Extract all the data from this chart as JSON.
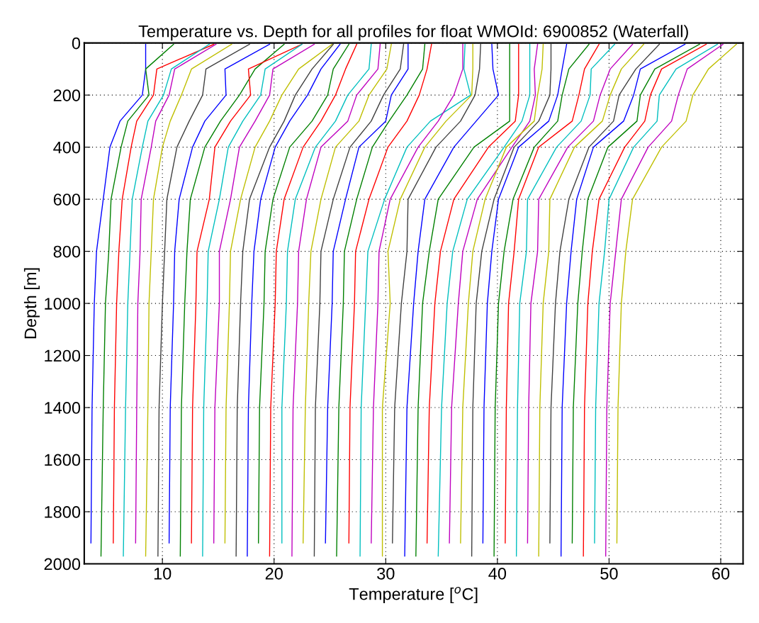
{
  "chart_data": {
    "type": "line",
    "title": "Temperature vs. Depth for all profiles for float WMOId: 6900852 (Waterfall)",
    "xlabel": "Temperature [$^{o}$C]",
    "ylabel": "Depth [m]",
    "xlim": [
      3,
      62
    ],
    "xticks": [
      10,
      20,
      30,
      40,
      50,
      60
    ],
    "ylim": [
      2000,
      0
    ],
    "yticks": [
      0,
      200,
      400,
      600,
      800,
      1000,
      1200,
      1400,
      1600,
      1800,
      2000
    ],
    "grid": true,
    "line_style": "solid",
    "marker": "none",
    "series": [
      {
        "color": "#0000ff",
        "x": [
          8.5,
          8.5,
          8.2,
          6.2,
          5.3,
          4.7,
          4.1,
          3.9,
          3.7,
          3.6
        ],
        "values": [
          5,
          100,
          200,
          300,
          400,
          600,
          800,
          1000,
          1400,
          1920
        ]
      },
      {
        "color": "#008000",
        "x": [
          11.0,
          8.5,
          8.8,
          6.9,
          6.3,
          5.4,
          5.2,
          4.9,
          4.7,
          4.5
        ],
        "values": [
          5,
          100,
          200,
          300,
          400,
          600,
          800,
          1000,
          1400,
          1970
        ]
      },
      {
        "color": "#ff0000",
        "x": [
          14.6,
          9.5,
          9.2,
          7.7,
          7.2,
          6.4,
          6.1,
          5.9,
          5.7,
          5.6
        ],
        "values": [
          5,
          100,
          200,
          300,
          400,
          600,
          800,
          1000,
          1400,
          1920
        ]
      },
      {
        "color": "#00bfbf",
        "x": [
          14.2,
          10.8,
          10.1,
          8.7,
          8.2,
          7.3,
          7.1,
          6.9,
          6.7,
          6.5
        ],
        "values": [
          5,
          100,
          200,
          300,
          400,
          600,
          800,
          1000,
          1400,
          1970
        ]
      },
      {
        "color": "#bf00bf",
        "x": [
          14.8,
          11.1,
          10.6,
          9.4,
          9.0,
          8.1,
          8.0,
          7.8,
          7.7,
          7.6
        ],
        "values": [
          5,
          100,
          200,
          300,
          400,
          600,
          800,
          1000,
          1400,
          1920
        ]
      },
      {
        "color": "#bfbf00",
        "x": [
          16.2,
          12.6,
          11.7,
          10.7,
          10.0,
          9.2,
          9.0,
          8.8,
          8.7,
          8.5
        ],
        "values": [
          5,
          100,
          200,
          300,
          400,
          600,
          800,
          1000,
          1400,
          1970
        ]
      },
      {
        "color": "#404040",
        "x": [
          17.8,
          13.9,
          13.6,
          12.4,
          11.3,
          10.4,
          10.2,
          10.0,
          9.7,
          9.6
        ],
        "values": [
          5,
          100,
          200,
          300,
          400,
          600,
          800,
          1000,
          1400,
          1970
        ]
      },
      {
        "color": "#0000ff",
        "x": [
          19.6,
          15.6,
          15.7,
          13.8,
          12.7,
          11.5,
          11.1,
          11.0,
          10.7,
          10.6
        ],
        "values": [
          5,
          100,
          200,
          300,
          400,
          600,
          800,
          1000,
          1400,
          1920
        ]
      },
      {
        "color": "#008000",
        "x": [
          20.9,
          18.3,
          16.9,
          15.2,
          13.8,
          12.5,
          12.2,
          12.0,
          11.7,
          11.6
        ],
        "values": [
          5,
          100,
          200,
          300,
          400,
          600,
          800,
          1000,
          1400,
          1970
        ]
      },
      {
        "color": "#ff0000",
        "x": [
          22.5,
          17.7,
          17.9,
          16.1,
          14.7,
          14.2,
          13.1,
          13.0,
          12.7,
          12.6
        ],
        "values": [
          5,
          100,
          200,
          300,
          400,
          600,
          800,
          1000,
          1400,
          1920
        ]
      },
      {
        "color": "#00bfbf",
        "x": [
          22.5,
          19.2,
          18.8,
          17.2,
          15.9,
          15.1,
          14.1,
          14.0,
          13.7,
          13.6
        ],
        "values": [
          5,
          100,
          200,
          300,
          400,
          600,
          800,
          1000,
          1400,
          1970
        ]
      },
      {
        "color": "#bf00bf",
        "x": [
          23.6,
          19.9,
          19.6,
          18.3,
          16.9,
          16.1,
          15.1,
          15.1,
          14.7,
          14.6
        ],
        "values": [
          5,
          100,
          200,
          300,
          400,
          600,
          800,
          1000,
          1400,
          1920
        ]
      },
      {
        "color": "#bfbf00",
        "x": [
          25.2,
          22.2,
          20.7,
          19.6,
          18.3,
          17.0,
          16.1,
          16.0,
          15.7,
          15.6
        ],
        "values": [
          5,
          100,
          200,
          300,
          400,
          600,
          800,
          1000,
          1400,
          1920
        ]
      },
      {
        "color": "#404040",
        "x": [
          25.3,
          23.4,
          21.9,
          20.9,
          19.6,
          17.8,
          17.2,
          17.0,
          16.7,
          16.6
        ],
        "values": [
          5,
          100,
          200,
          300,
          400,
          600,
          800,
          1000,
          1400,
          1970
        ]
      },
      {
        "color": "#0000ff",
        "x": [
          25.9,
          24.2,
          23.0,
          21.4,
          20.1,
          18.8,
          18.2,
          18.0,
          17.7,
          17.6
        ],
        "values": [
          5,
          100,
          200,
          300,
          400,
          600,
          800,
          1000,
          1400,
          1970
        ]
      },
      {
        "color": "#008000",
        "x": [
          26.7,
          25.3,
          24.8,
          23.4,
          21.4,
          19.9,
          19.2,
          19.1,
          18.7,
          18.6
        ],
        "values": [
          5,
          100,
          200,
          300,
          400,
          600,
          800,
          1000,
          1400,
          1920
        ]
      },
      {
        "color": "#ff0000",
        "x": [
          27.4,
          26.4,
          25.5,
          24.2,
          22.6,
          20.9,
          20.2,
          20.1,
          19.7,
          19.6
        ],
        "values": [
          5,
          100,
          200,
          300,
          400,
          600,
          800,
          1000,
          1400,
          1970
        ]
      },
      {
        "color": "#00bfbf",
        "x": [
          28.7,
          28.5,
          26.6,
          25.5,
          23.7,
          21.9,
          21.2,
          21.1,
          20.7,
          20.7
        ],
        "values": [
          5,
          100,
          200,
          300,
          400,
          600,
          800,
          1000,
          1400,
          1920
        ]
      },
      {
        "color": "#bf00bf",
        "x": [
          29.5,
          29.3,
          27.4,
          26.6,
          24.2,
          22.9,
          22.2,
          22.1,
          21.7,
          21.6
        ],
        "values": [
          5,
          100,
          200,
          300,
          400,
          600,
          800,
          1000,
          1400,
          1970
        ]
      },
      {
        "color": "#bfbf00",
        "x": [
          30.5,
          30.1,
          28.5,
          27.6,
          25.5,
          24.2,
          23.3,
          23.1,
          22.8,
          22.6
        ],
        "values": [
          5,
          100,
          200,
          300,
          400,
          600,
          800,
          1000,
          1400,
          1920
        ]
      },
      {
        "color": "#404040",
        "x": [
          31.6,
          31.3,
          29.8,
          28.7,
          26.8,
          25.3,
          24.2,
          24.1,
          23.7,
          23.6
        ],
        "values": [
          5,
          100,
          200,
          300,
          400,
          600,
          800,
          1000,
          1400,
          1970
        ]
      },
      {
        "color": "#0000ff",
        "x": [
          32.0,
          32.0,
          30.5,
          30.0,
          27.6,
          26.4,
          25.3,
          25.2,
          24.8,
          24.6
        ],
        "values": [
          5,
          100,
          200,
          300,
          400,
          600,
          800,
          1000,
          1400,
          1920
        ]
      },
      {
        "color": "#008000",
        "x": [
          33.5,
          33.3,
          31.9,
          30.3,
          28.8,
          27.4,
          26.3,
          26.2,
          25.8,
          25.6
        ],
        "values": [
          5,
          100,
          200,
          300,
          400,
          600,
          800,
          1000,
          1400,
          1970
        ]
      },
      {
        "color": "#ff0000",
        "x": [
          34.1,
          33.7,
          33.0,
          31.9,
          30.2,
          28.5,
          27.3,
          27.2,
          26.8,
          26.7
        ],
        "values": [
          5,
          100,
          200,
          300,
          400,
          600,
          800,
          1000,
          1400,
          1920
        ]
      },
      {
        "color": "#00bfbf",
        "x": [
          37.1,
          37.0,
          37.6,
          34.0,
          31.9,
          29.9,
          28.4,
          28.2,
          27.8,
          27.7
        ],
        "values": [
          5,
          100,
          200,
          300,
          400,
          600,
          800,
          1000,
          1400,
          1970
        ]
      },
      {
        "color": "#bf00bf",
        "x": [
          36.9,
          36.9,
          36.1,
          34.7,
          32.9,
          30.4,
          29.4,
          29.3,
          28.9,
          28.7
        ],
        "values": [
          5,
          100,
          200,
          300,
          400,
          600,
          800,
          1000,
          1400,
          1920
        ]
      },
      {
        "color": "#bfbf00",
        "x": [
          37.8,
          37.8,
          37.7,
          35.4,
          33.5,
          31.3,
          30.2,
          30.4,
          29.7,
          29.7
        ],
        "values": [
          5,
          100,
          200,
          300,
          400,
          600,
          800,
          1000,
          1400,
          1970
        ]
      },
      {
        "color": "#404040",
        "x": [
          38.5,
          38.4,
          38.0,
          36.7,
          34.5,
          32.0,
          31.9,
          31.4,
          30.8,
          30.6
        ],
        "values": [
          5,
          100,
          200,
          300,
          400,
          600,
          800,
          1000,
          1400,
          1920
        ]
      },
      {
        "color": "#0000ff",
        "x": [
          39.5,
          39.6,
          40.1,
          38.1,
          36.1,
          33.5,
          32.9,
          32.5,
          31.9,
          31.7
        ],
        "values": [
          5,
          100,
          200,
          300,
          400,
          600,
          800,
          1000,
          1400,
          1970
        ]
      },
      {
        "color": "#008000",
        "x": [
          41.1,
          41.1,
          41.1,
          41.1,
          37.9,
          34.7,
          33.9,
          33.3,
          32.9,
          32.7
        ],
        "values": [
          5,
          100,
          200,
          300,
          400,
          600,
          800,
          1000,
          1400,
          1970
        ]
      },
      {
        "color": "#ff0000",
        "x": [
          41.9,
          41.9,
          41.9,
          41.6,
          39.2,
          36.1,
          34.9,
          34.4,
          33.9,
          33.7
        ],
        "values": [
          5,
          100,
          200,
          300,
          400,
          600,
          800,
          1000,
          1400,
          1920
        ]
      },
      {
        "color": "#00bfbf",
        "x": [
          42.9,
          42.9,
          42.9,
          42.2,
          40.6,
          37.3,
          36.0,
          35.5,
          35.0,
          34.7
        ],
        "values": [
          5,
          100,
          200,
          300,
          400,
          600,
          800,
          1000,
          1400,
          1970
        ]
      },
      {
        "color": "#bf00bf",
        "x": [
          43.6,
          43.3,
          43.4,
          42.9,
          41.3,
          38.2,
          36.9,
          36.5,
          35.9,
          35.7
        ],
        "values": [
          5,
          100,
          200,
          300,
          400,
          600,
          800,
          1000,
          1400,
          1920
        ]
      },
      {
        "color": "#bfbf00",
        "x": [
          44.1,
          44.0,
          43.6,
          43.3,
          40.8,
          38.9,
          37.8,
          37.4,
          36.9,
          36.7
        ],
        "values": [
          5,
          100,
          200,
          300,
          400,
          600,
          800,
          1000,
          1400,
          1920
        ]
      },
      {
        "color": "#404040",
        "x": [
          44.8,
          44.8,
          44.7,
          43.7,
          41.5,
          39.7,
          38.6,
          38.1,
          37.8,
          37.7
        ],
        "values": [
          5,
          100,
          200,
          300,
          400,
          600,
          800,
          1000,
          1400,
          1970
        ]
      },
      {
        "color": "#0000ff",
        "x": [
          46.2,
          45.8,
          45.4,
          44.6,
          41.9,
          40.1,
          39.5,
          39.1,
          38.8,
          38.7
        ],
        "values": [
          5,
          100,
          200,
          300,
          400,
          600,
          800,
          1000,
          1400,
          1920
        ]
      },
      {
        "color": "#008000",
        "x": [
          48.2,
          46.4,
          45.8,
          45.4,
          43.3,
          41.4,
          40.6,
          40.1,
          39.8,
          39.7
        ],
        "values": [
          5,
          100,
          200,
          300,
          400,
          600,
          800,
          1000,
          1400,
          1970
        ]
      },
      {
        "color": "#ff0000",
        "x": [
          49.1,
          47.8,
          47.3,
          46.7,
          43.7,
          41.9,
          41.5,
          41.0,
          40.8,
          40.7
        ],
        "values": [
          5,
          100,
          200,
          300,
          400,
          600,
          800,
          1000,
          1400,
          1920
        ]
      },
      {
        "color": "#00bfbf",
        "x": [
          50.5,
          48.4,
          48.3,
          47.5,
          45.3,
          42.7,
          42.6,
          42.0,
          41.8,
          41.7
        ],
        "values": [
          5,
          100,
          200,
          300,
          400,
          600,
          800,
          1000,
          1400,
          1970
        ]
      },
      {
        "color": "#bf00bf",
        "x": [
          52.1,
          50.1,
          49.2,
          48.6,
          46.3,
          43.7,
          43.6,
          43.0,
          42.8,
          42.7
        ],
        "values": [
          5,
          100,
          200,
          300,
          400,
          600,
          800,
          1000,
          1400,
          1920
        ]
      },
      {
        "color": "#bfbf00",
        "x": [
          53.1,
          51.1,
          50.1,
          49.4,
          46.9,
          44.7,
          44.6,
          44.1,
          43.8,
          43.7
        ],
        "values": [
          5,
          100,
          200,
          300,
          400,
          600,
          800,
          1000,
          1400,
          1970
        ]
      },
      {
        "color": "#404040",
        "x": [
          54.5,
          52.4,
          50.9,
          50.4,
          48.2,
          46.4,
          45.6,
          45.2,
          44.8,
          44.7
        ],
        "values": [
          5,
          100,
          200,
          300,
          400,
          600,
          800,
          1000,
          1400,
          1920
        ]
      },
      {
        "color": "#0000ff",
        "x": [
          56.8,
          52.8,
          52.2,
          51.3,
          48.6,
          47.1,
          46.6,
          46.2,
          45.8,
          45.7
        ],
        "values": [
          5,
          100,
          200,
          300,
          400,
          600,
          800,
          1000,
          1400,
          1970
        ]
      },
      {
        "color": "#008000",
        "x": [
          58.1,
          54.1,
          52.8,
          52.5,
          49.9,
          48.1,
          47.6,
          47.2,
          46.8,
          46.7
        ],
        "values": [
          5,
          100,
          200,
          300,
          400,
          600,
          800,
          1000,
          1400,
          1920
        ]
      },
      {
        "color": "#ff0000",
        "x": [
          58.7,
          54.7,
          53.7,
          53.2,
          51.4,
          49.1,
          48.5,
          48.1,
          47.8,
          47.7
        ],
        "values": [
          5,
          100,
          200,
          300,
          400,
          600,
          800,
          1000,
          1400,
          1970
        ]
      },
      {
        "color": "#00bfbf",
        "x": [
          59.7,
          56.0,
          54.5,
          54.3,
          52.2,
          50.0,
          49.6,
          49.1,
          48.8,
          48.7
        ],
        "values": [
          5,
          100,
          200,
          300,
          400,
          600,
          800,
          1000,
          1400,
          1920
        ]
      },
      {
        "color": "#bf00bf",
        "x": [
          60.2,
          57.0,
          56.2,
          55.6,
          53.5,
          51.1,
          50.6,
          50.1,
          49.8,
          49.7
        ],
        "values": [
          5,
          100,
          200,
          300,
          400,
          600,
          800,
          1000,
          1400,
          1970
        ]
      },
      {
        "color": "#bfbf00",
        "x": [
          61.4,
          58.9,
          57.5,
          56.9,
          54.7,
          52.1,
          51.5,
          51.1,
          50.8,
          50.7
        ],
        "values": [
          5,
          100,
          200,
          300,
          400,
          600,
          800,
          1000,
          1400,
          1920
        ]
      }
    ]
  }
}
